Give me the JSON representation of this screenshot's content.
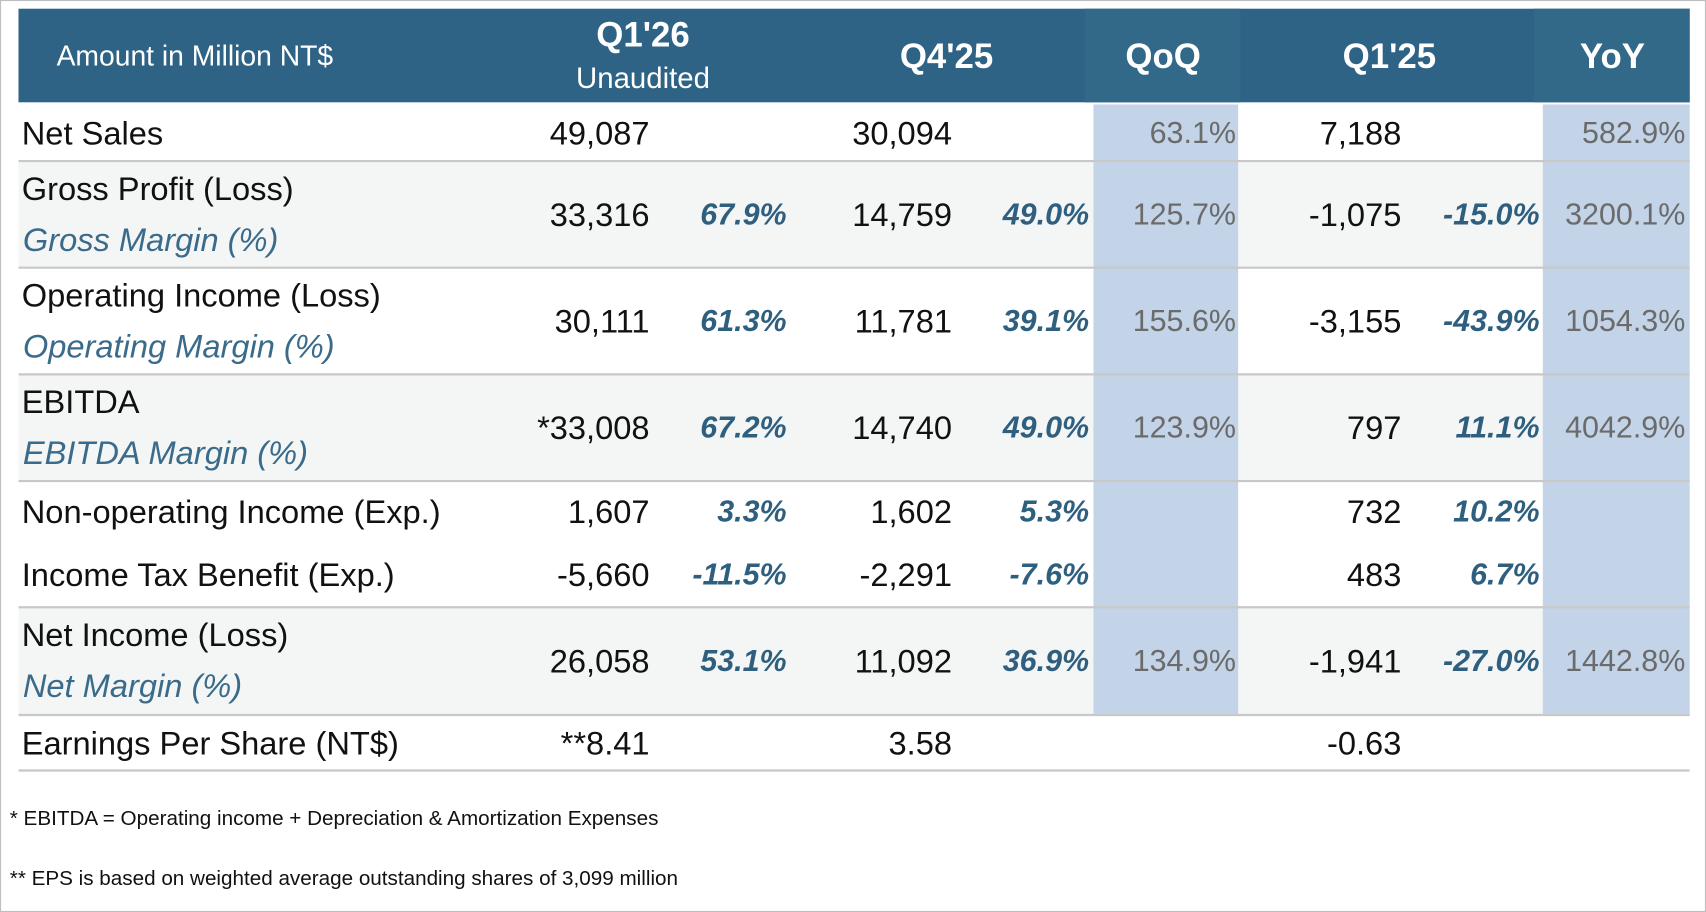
{
  "header": {
    "title": "Amount in Million NT$",
    "columns": [
      {
        "label": "Q1'26",
        "sublabel": "Unaudited"
      },
      {
        "label": "Q4'25"
      },
      {
        "label": "QoQ"
      },
      {
        "label": "Q1'25"
      },
      {
        "label": "YoY"
      }
    ]
  },
  "table": {
    "rows": [
      {
        "label": "Net Sales",
        "q1_26": "49,087",
        "q4_25": "30,094",
        "qoq": "63.1%",
        "q1_25": "7,188",
        "yoy": "582.9%"
      },
      {
        "label": "Gross Profit (Loss)",
        "margin_label": "Gross Margin (%)",
        "q1_26": "33,316",
        "q1_26_pct": "67.9%",
        "q4_25": "14,759",
        "q4_25_pct": "49.0%",
        "qoq": "125.7%",
        "q1_25": "-1,075",
        "q1_25_pct": "-15.0%",
        "yoy": "3200.1%"
      },
      {
        "label": "Operating Income (Loss)",
        "margin_label": "Operating Margin (%)",
        "q1_26": "30,111",
        "q1_26_pct": "61.3%",
        "q4_25": "11,781",
        "q4_25_pct": "39.1%",
        "qoq": "155.6%",
        "q1_25": "-3,155",
        "q1_25_pct": "-43.9%",
        "yoy": "1054.3%"
      },
      {
        "label": "EBITDA",
        "margin_label": "EBITDA Margin (%)",
        "q1_26": "*33,008",
        "q1_26_pct": "67.2%",
        "q4_25": "14,740",
        "q4_25_pct": "49.0%",
        "qoq": "123.9%",
        "q1_25": "797",
        "q1_25_pct": "11.1%",
        "yoy": "4042.9%"
      },
      {
        "label": "Non-operating Income (Exp.)",
        "q1_26": "1,607",
        "q1_26_pct": "3.3%",
        "q4_25": "1,602",
        "q4_25_pct": "5.3%",
        "q1_25": "732",
        "q1_25_pct": "10.2%"
      },
      {
        "label": "Income Tax Benefit (Exp.)",
        "q1_26": "-5,660",
        "q1_26_pct": "-11.5%",
        "q4_25": "-2,291",
        "q4_25_pct": "-7.6%",
        "q1_25": "483",
        "q1_25_pct": "6.7%"
      },
      {
        "label": "Net Income (Loss)",
        "margin_label": "Net Margin (%)",
        "q1_26": "26,058",
        "q1_26_pct": "53.1%",
        "q4_25": "11,092",
        "q4_25_pct": "36.9%",
        "qoq": "134.9%",
        "q1_25": "-1,941",
        "q1_25_pct": "-27.0%",
        "yoy": "1442.8%"
      },
      {
        "label": "Earnings Per Share (NT$)",
        "q1_26": "**8.41",
        "q4_25": "3.58",
        "q1_25": "-0.63"
      }
    ]
  },
  "notes": [
    "* EBITDA = Operating income + Depreciation & Amortization Expenses",
    "** EPS is based on weighted average outstanding shares of 3,099 million"
  ]
}
